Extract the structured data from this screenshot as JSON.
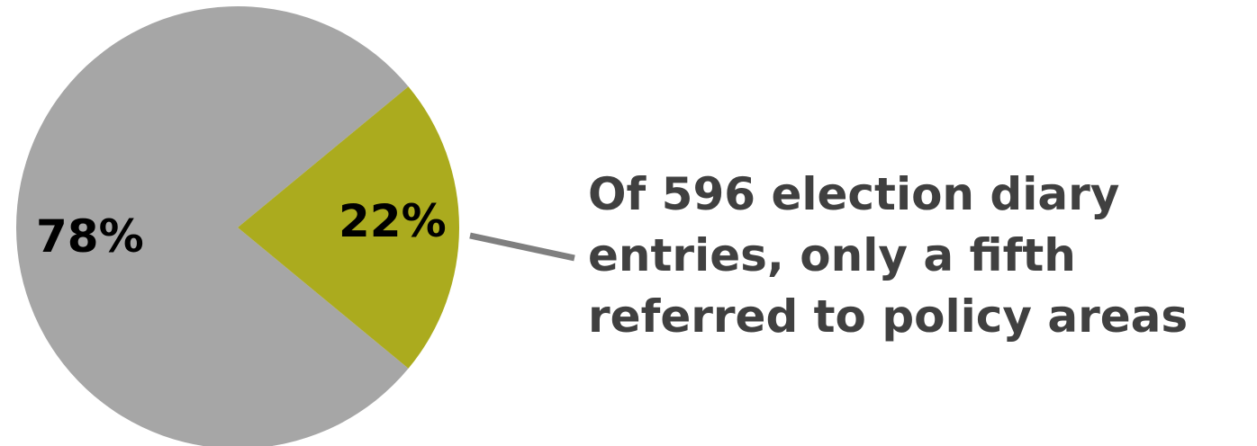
{
  "chart_data": {
    "type": "pie",
    "title": "",
    "slices": [
      {
        "label": "78%",
        "value": 78,
        "color": "#a6a6a6"
      },
      {
        "label": "22%",
        "value": 22,
        "color": "#abab1e"
      }
    ],
    "annotation": {
      "lines": [
        "Of 596 election diary",
        "entries, only a fifth",
        "referred to policy areas"
      ],
      "color": "#404040",
      "leader_color": "#7f7f7f"
    },
    "legend": "none"
  }
}
